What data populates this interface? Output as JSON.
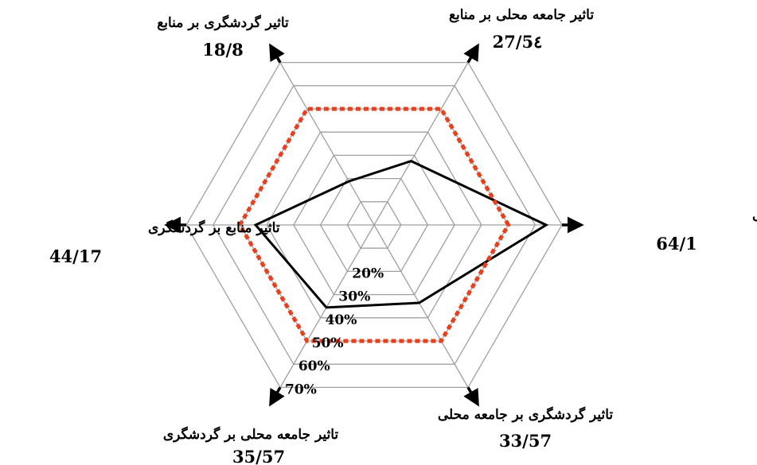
{
  "chart_data": {
    "type": "radar",
    "title": "",
    "rings": [
      10,
      20,
      30,
      40,
      50,
      60,
      70
    ],
    "ring_labels": [
      "20%",
      "30%",
      "40%",
      "50%",
      "60%",
      "70%"
    ],
    "axes": [
      {
        "label": "تاثیر منابع بر جامعه محلی",
        "value_text": "64/1",
        "value": 64.1
      },
      {
        "label": "تاثیر جامعه محلی بر منابع",
        "value_text": "27/5٤",
        "value": 27.54
      },
      {
        "label": "تاثیر گردشگری بر منابع",
        "value_text": "18/8",
        "value": 18.8
      },
      {
        "label": "تاثیر منابع بر گردشگری",
        "value_text": "44/17",
        "value": 44.17
      },
      {
        "label": "تاثیر جامعه محلی بر گردشگری",
        "value_text": "35/57",
        "value": 35.57
      },
      {
        "label": "تاثیر گردشگری بر جامعه محلی",
        "value_text": "33/57",
        "value": 33.57
      }
    ],
    "series": [
      {
        "values": [
          64.1,
          27.54,
          18.8,
          44.17,
          35.57,
          33.57
        ],
        "color": "#000000",
        "style": "solid"
      },
      {
        "values": [
          50,
          50,
          50,
          50,
          50,
          50
        ],
        "color": "#e8401c",
        "style": "dotted"
      }
    ],
    "grid_color": "#a0a0a0",
    "axis_color": "#000000"
  }
}
